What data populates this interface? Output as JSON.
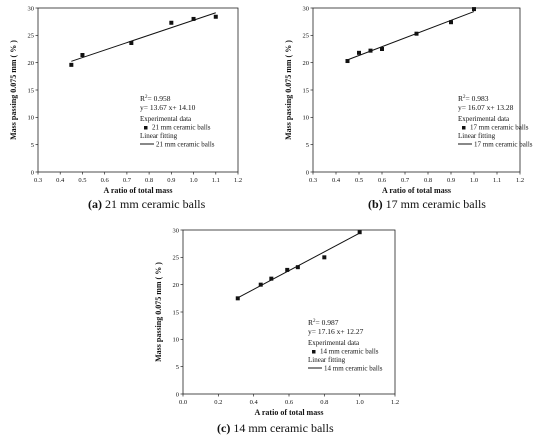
{
  "chart_data": [
    {
      "type": "scatter",
      "caption_label": "(a)",
      "caption_text": "21 mm ceramic balls",
      "xlabel": "A ratio  of total mass",
      "ylabel": "Mass passing 0.075 mm ( % )",
      "xlim": [
        0.3,
        1.2
      ],
      "ylim": [
        0,
        30
      ],
      "xticks": [
        "0.3",
        "0.4",
        "0.5",
        "0.6",
        "0.7",
        "0.8",
        "0.9",
        "1.0",
        "1.1",
        "1.2"
      ],
      "yticks": [
        "0",
        "5",
        "10",
        "15",
        "20",
        "25",
        "30"
      ],
      "r2": "0.958",
      "equation": "y= 13.67 x+ 14.10",
      "legend_experimental": "Experimental data",
      "legend_series": "21 mm ceramic balls",
      "legend_fit": "Linear fitting",
      "points": [
        [
          0.45,
          19.6
        ],
        [
          0.5,
          21.4
        ],
        [
          0.72,
          23.6
        ],
        [
          0.9,
          27.3
        ],
        [
          1.0,
          28.0
        ],
        [
          1.1,
          28.4
        ]
      ],
      "fit": {
        "slope": 13.67,
        "intercept": 14.1,
        "x_range": [
          0.45,
          1.1
        ]
      }
    },
    {
      "type": "scatter",
      "caption_label": "(b)",
      "caption_text": "17 mm ceramic balls",
      "xlabel": "A ratio  of total mass",
      "ylabel": "Mass passing 0.075 mm ( % )",
      "xlim": [
        0.3,
        1.2
      ],
      "ylim": [
        0,
        30
      ],
      "xticks": [
        "0.3",
        "0.4",
        "0.5",
        "0.6",
        "0.7",
        "0.8",
        "0.9",
        "1.0",
        "1.1",
        "1.2"
      ],
      "yticks": [
        "0",
        "5",
        "10",
        "15",
        "20",
        "25",
        "30"
      ],
      "r2": "0.983",
      "equation": "y= 16.07 x+ 13.28",
      "legend_experimental": "Experimental data",
      "legend_series": "17 mm ceramic balls",
      "legend_fit": "Linear fitting",
      "points": [
        [
          0.45,
          20.3
        ],
        [
          0.5,
          21.8
        ],
        [
          0.55,
          22.2
        ],
        [
          0.6,
          22.5
        ],
        [
          0.75,
          25.3
        ],
        [
          0.9,
          27.4
        ],
        [
          1.0,
          29.8
        ]
      ],
      "fit": {
        "slope": 16.07,
        "intercept": 13.28,
        "x_range": [
          0.45,
          1.0
        ]
      }
    },
    {
      "type": "scatter",
      "caption_label": "(c)",
      "caption_text": "14 mm ceramic balls",
      "xlabel": "A ratio  of total mass",
      "ylabel": "Mass passing 0.075 mm ( % )",
      "xlim": [
        0.0,
        1.2
      ],
      "ylim": [
        0,
        30
      ],
      "xticks": [
        "0.0",
        "0.2",
        "0.4",
        "0.6",
        "0.8",
        "1.0",
        "1.2"
      ],
      "yticks": [
        "0",
        "5",
        "10",
        "15",
        "20",
        "25",
        "30"
      ],
      "r2": "0.987",
      "equation": "y= 17.16 x+ 12.27",
      "legend_experimental": "Experimental data",
      "legend_series": "14 mm ceramic balls",
      "legend_fit": "Linear fitting",
      "points": [
        [
          0.31,
          17.5
        ],
        [
          0.44,
          20.0
        ],
        [
          0.5,
          21.1
        ],
        [
          0.59,
          22.7
        ],
        [
          0.65,
          23.2
        ],
        [
          0.8,
          25.0
        ],
        [
          1.0,
          29.6
        ]
      ],
      "fit": {
        "slope": 17.16,
        "intercept": 12.27,
        "x_range": [
          0.31,
          1.0
        ]
      }
    }
  ]
}
